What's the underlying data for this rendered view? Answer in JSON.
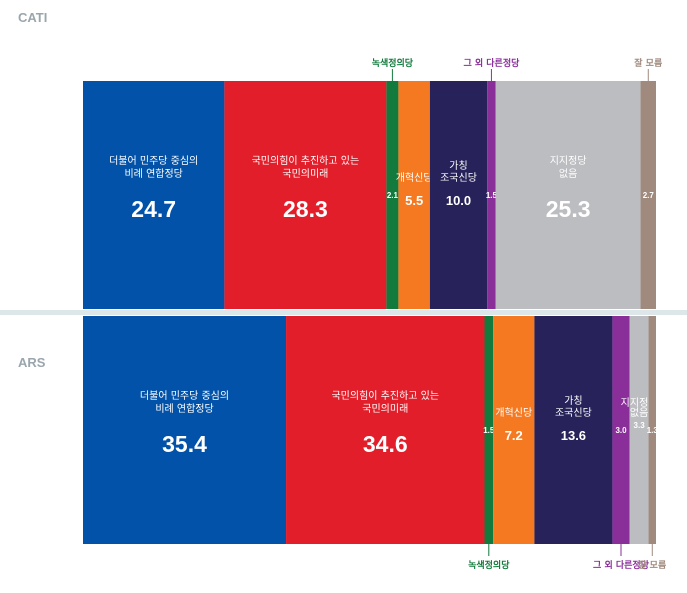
{
  "colors": {
    "minjoo": "#0152a8",
    "ppp": "#e21e2a",
    "green": "#117a3c",
    "reform": "#f47920",
    "cho": "#272259",
    "other": "#8a2e9a",
    "none": "#bcbdc0",
    "dontknow": "#a08a7e",
    "divider": "#dde6e9"
  },
  "chart_data": [
    {
      "type": "bar",
      "stacked": "horizontal-100",
      "panel": "CATI",
      "series": [
        {
          "name_lines": [
            "더불어 민주당 중심의",
            "비례 연합정당"
          ],
          "value": 24.7,
          "color_key": "minjoo"
        },
        {
          "name_lines": [
            "국민의힘이 추진하고 있는",
            "국민의미래"
          ],
          "value": 28.3,
          "color_key": "ppp"
        },
        {
          "name_lines": [
            "녹색정의당"
          ],
          "value": 2.1,
          "color_key": "green",
          "label_outside": "top"
        },
        {
          "name_lines": [
            "개혁신당"
          ],
          "value": 5.5,
          "color_key": "reform"
        },
        {
          "name_lines": [
            "가칭",
            "조국신당"
          ],
          "value": 10.0,
          "color_key": "cho"
        },
        {
          "name_lines": [
            "그 외 다른정당"
          ],
          "value": 1.5,
          "color_key": "other",
          "label_outside": "top"
        },
        {
          "name_lines": [
            "지지정당",
            "없음"
          ],
          "value": 25.3,
          "color_key": "none"
        },
        {
          "name_lines": [
            "잘 모름"
          ],
          "value": 2.7,
          "color_key": "dontknow",
          "label_outside": "top"
        }
      ]
    },
    {
      "type": "bar",
      "stacked": "horizontal-100",
      "panel": "ARS",
      "series": [
        {
          "name_lines": [
            "더불어 민주당 중심의",
            "비례 연합정당"
          ],
          "value": 35.4,
          "color_key": "minjoo"
        },
        {
          "name_lines": [
            "국민의힘이 추진하고 있는",
            "국민의미래"
          ],
          "value": 34.6,
          "color_key": "ppp"
        },
        {
          "name_lines": [
            "녹색정의당"
          ],
          "value": 1.5,
          "color_key": "green",
          "label_outside": "bottom"
        },
        {
          "name_lines": [
            "개혁신당"
          ],
          "value": 7.2,
          "color_key": "reform"
        },
        {
          "name_lines": [
            "가칭",
            "조국신당"
          ],
          "value": 13.6,
          "color_key": "cho"
        },
        {
          "name_lines": [
            "그 외 다른정당"
          ],
          "value": 3.0,
          "color_key": "other",
          "label_outside": "bottom"
        },
        {
          "name_lines": [
            "지지정당",
            "없음"
          ],
          "value": 3.3,
          "color_key": "none"
        },
        {
          "name_lines": [
            "잘 모름"
          ],
          "value": 1.3,
          "color_key": "dontknow",
          "label_outside": "bottom"
        }
      ]
    }
  ]
}
